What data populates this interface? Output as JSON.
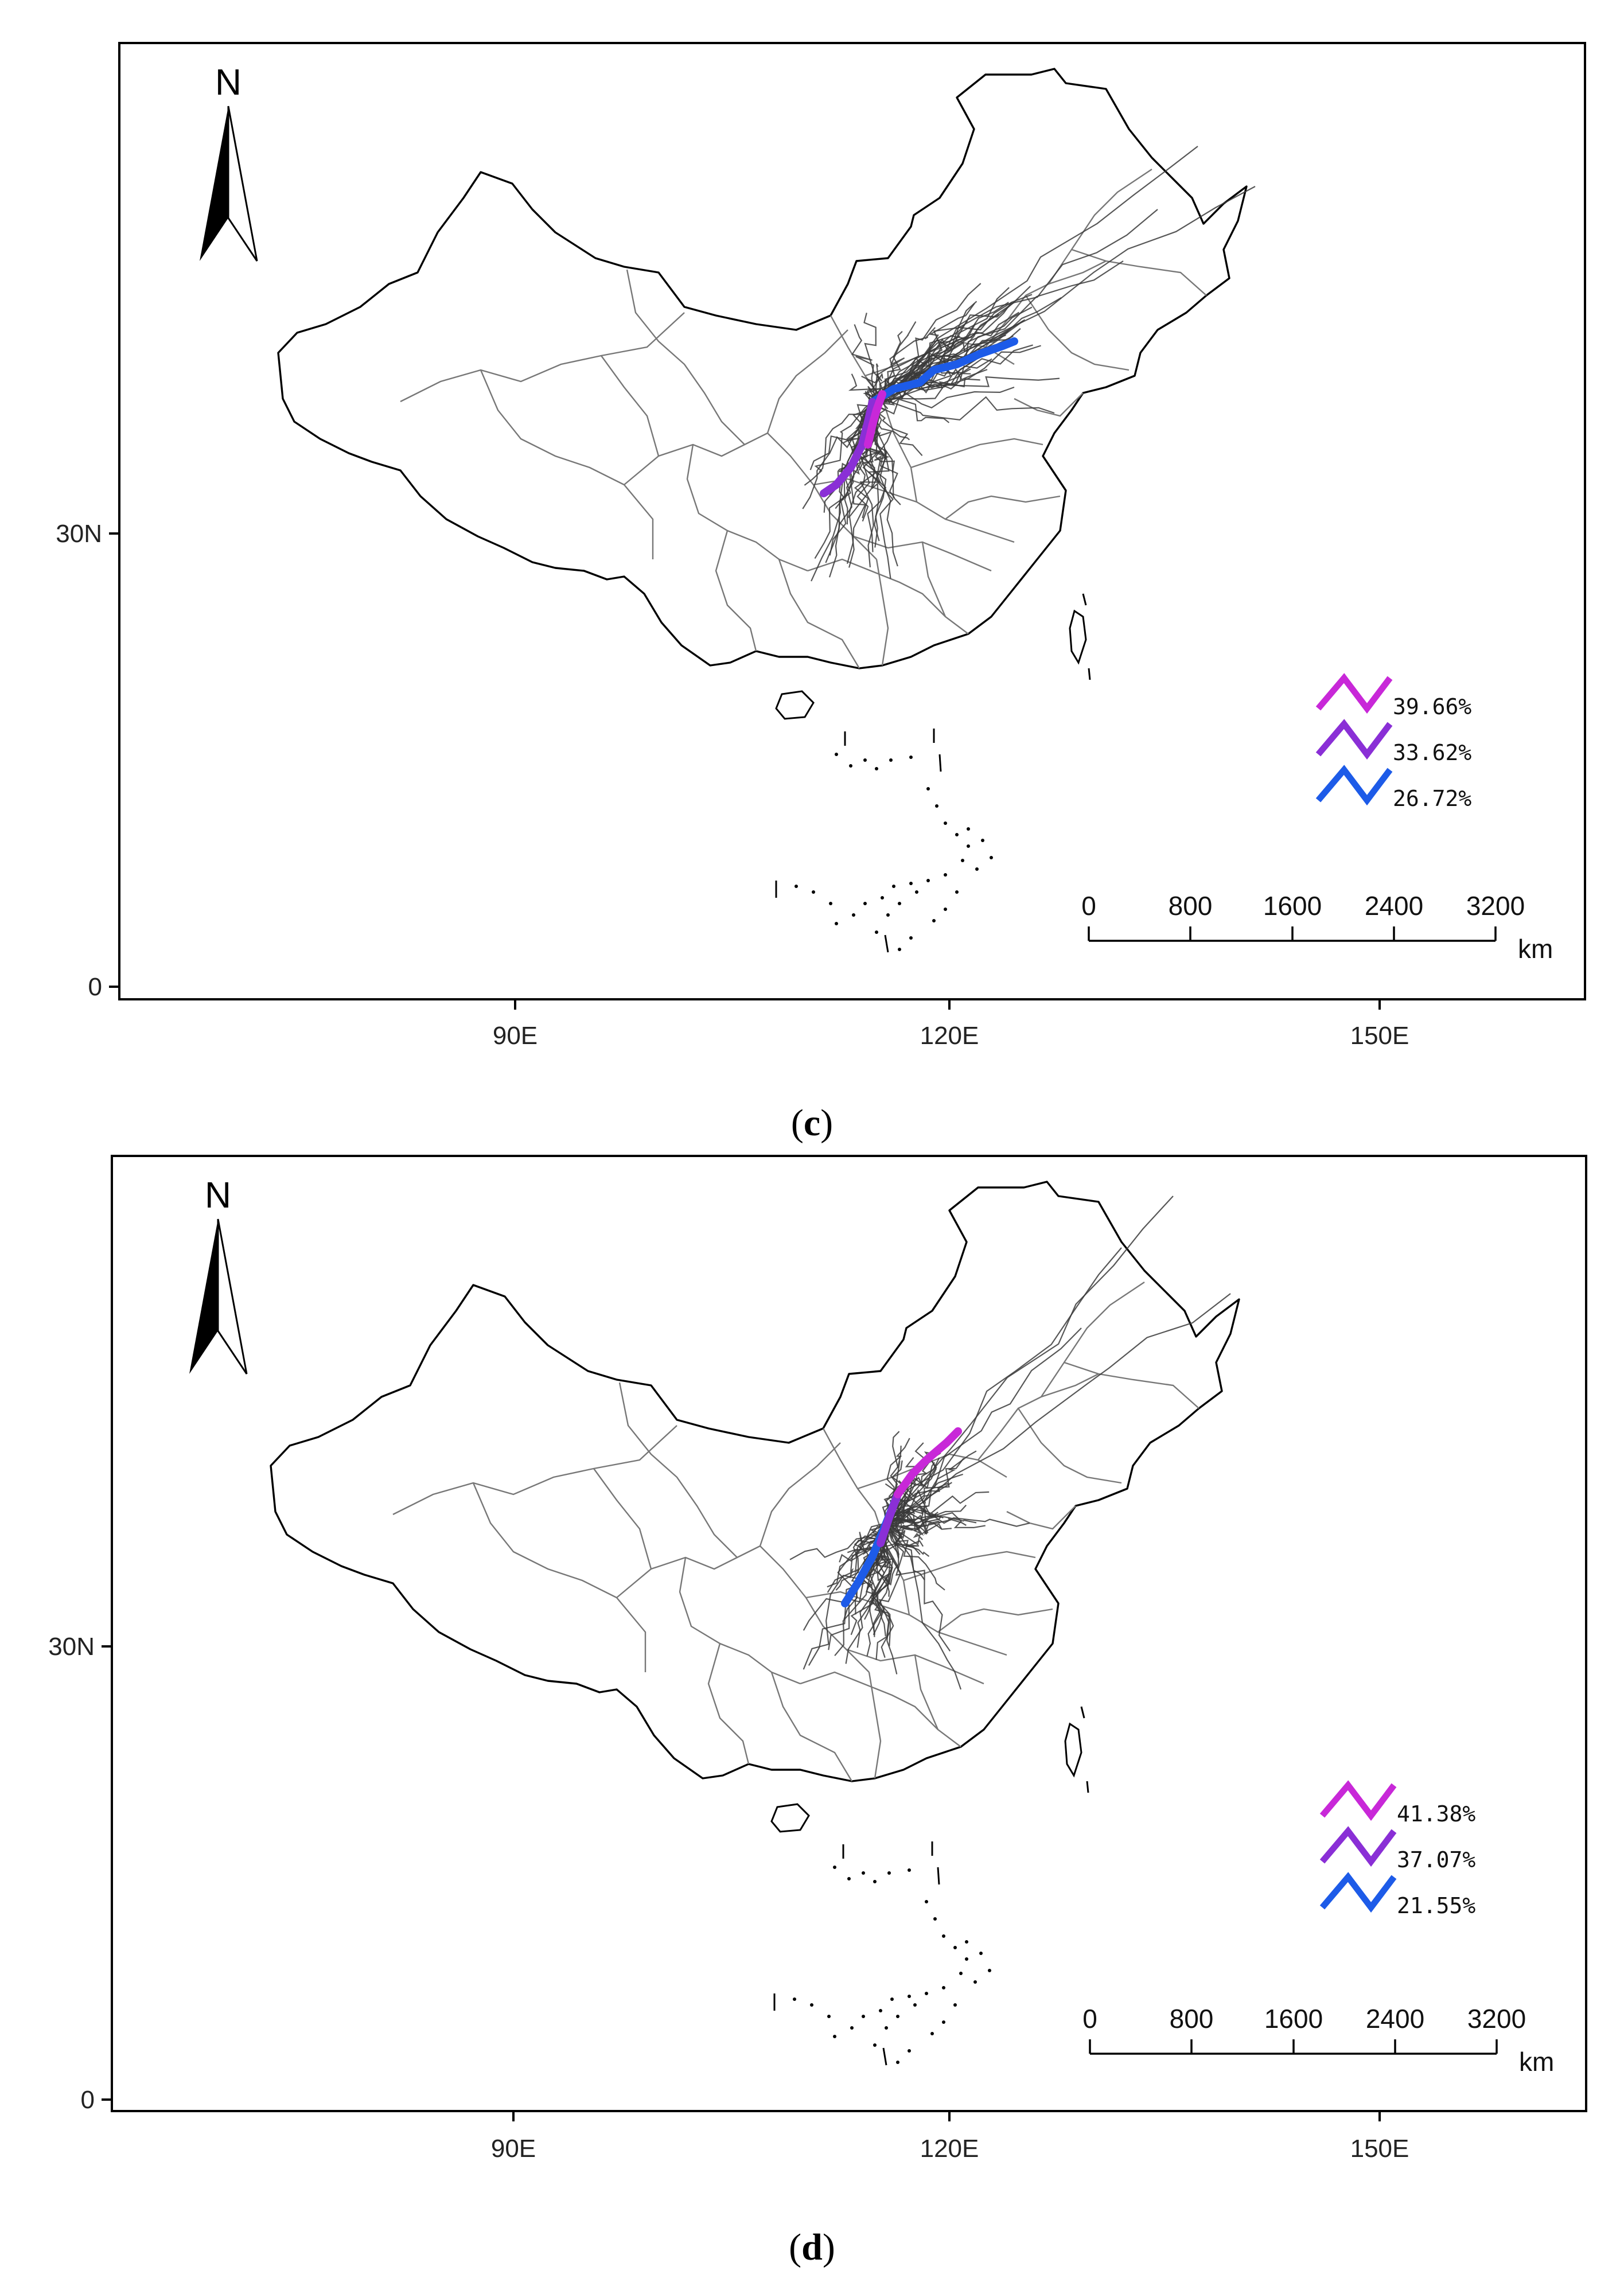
{
  "panels": [
    {
      "id": "c",
      "caption_open": "(",
      "caption_letter": "c",
      "caption_close": ")",
      "north": "N",
      "lat_labels": [
        "30N",
        "0"
      ],
      "lon_labels": [
        "90E",
        "120E",
        "150E"
      ],
      "scale_labels": [
        "0",
        "800",
        "1600",
        "2400",
        "3200"
      ],
      "scale_unit": "km",
      "legend": [
        {
          "label": "39.66%",
          "color": "#c828d8"
        },
        {
          "label": "33.62%",
          "color": "#8a2fd6"
        },
        {
          "label": "26.72%",
          "color": "#1d5be8"
        }
      ]
    },
    {
      "id": "d",
      "caption_open": "(",
      "caption_letter": "d",
      "caption_close": ")",
      "north": "N",
      "lat_labels": [
        "30N",
        "0"
      ],
      "lon_labels": [
        "90E",
        "120E",
        "150E"
      ],
      "scale_labels": [
        "0",
        "800",
        "1600",
        "2400",
        "3200"
      ],
      "scale_unit": "km",
      "legend": [
        {
          "label": "41.38%",
          "color": "#c828d8"
        },
        {
          "label": "37.07%",
          "color": "#8a2fd6"
        },
        {
          "label": "21.55%",
          "color": "#1d5be8"
        }
      ]
    }
  ]
}
